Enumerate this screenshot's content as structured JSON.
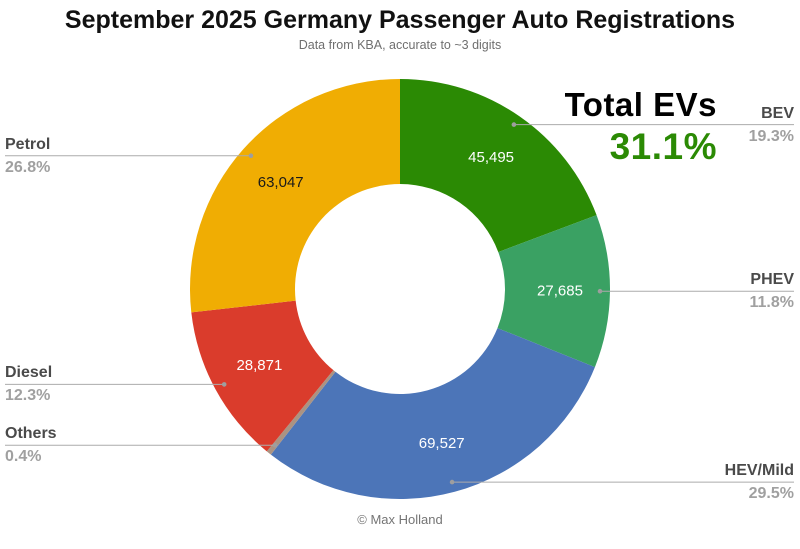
{
  "header": {
    "title": "September 2025 Germany Passenger Auto Registrations",
    "subtitle": "Data from KBA, accurate to ~3 digits"
  },
  "annotation": {
    "title": "Total EVs",
    "value": "31.1%",
    "color": "#2b8a04"
  },
  "footer": {
    "credit": "© Max Holland"
  },
  "chart_data": {
    "type": "pie",
    "subtype": "donut",
    "title": "September 2025 Germany Passenger Auto Registrations",
    "start_angle_deg": 0,
    "direction": "clockwise",
    "inner_radius_ratio": 0.5,
    "leader_line_color": "#ababab",
    "label_color": "#4a4a4a",
    "percent_color": "#a0a0a0",
    "slices": [
      {
        "label": "BEV",
        "percent": 19.3,
        "percent_label": "19.3%",
        "value": 45495,
        "value_label": "45,495",
        "color": "#2b8a04",
        "value_text_color": "#ffffff",
        "side": "right"
      },
      {
        "label": "PHEV",
        "percent": 11.8,
        "percent_label": "11.8%",
        "value": 27685,
        "value_label": "27,685",
        "color": "#3aa163",
        "value_text_color": "#ffffff",
        "side": "right"
      },
      {
        "label": "HEV/Mild",
        "percent": 29.5,
        "percent_label": "29.5%",
        "value": 69527,
        "value_label": "69,527",
        "color": "#4c75b8",
        "value_text_color": "#ffffff",
        "side": "right"
      },
      {
        "label": "Others",
        "percent": 0.4,
        "percent_label": "0.4%",
        "value": null,
        "value_label": "",
        "color": "#ab9382",
        "value_text_color": "#ffffff",
        "side": "left"
      },
      {
        "label": "Diesel",
        "percent": 12.3,
        "percent_label": "12.3%",
        "value": 28871,
        "value_label": "28,871",
        "color": "#da3c2c",
        "value_text_color": "#ffffff",
        "side": "left"
      },
      {
        "label": "Petrol",
        "percent": 26.8,
        "percent_label": "26.8%",
        "value": 63047,
        "value_label": "63,047",
        "color": "#f0ad03",
        "value_text_color": "#1a1a1a",
        "side": "left"
      }
    ]
  }
}
